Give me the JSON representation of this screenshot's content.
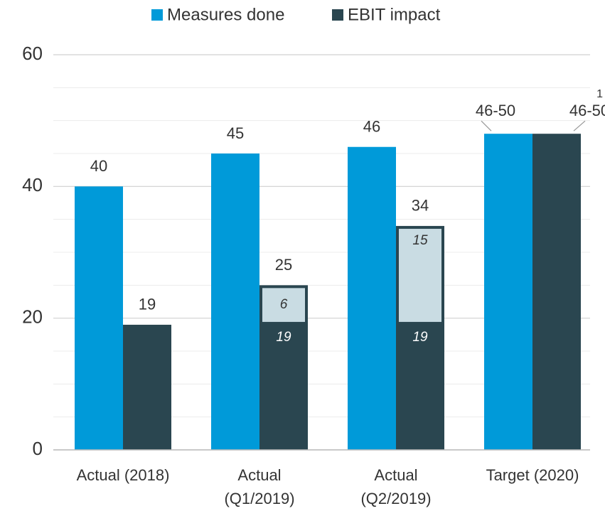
{
  "chart_data": {
    "type": "bar",
    "categories": [
      "Actual (2018)",
      "Actual (Q1/2019)",
      "Actual (Q2/2019)",
      "Target (2020)"
    ],
    "series": [
      {
        "name": "Measures done",
        "color": "#009ad9",
        "values": [
          40,
          45,
          46,
          null
        ]
      },
      {
        "name": "EBIT impact",
        "color": "#2a4650",
        "values": [
          19,
          25,
          34,
          null
        ],
        "base": [
          null,
          19,
          19,
          null
        ],
        "added": [
          null,
          6,
          15,
          null
        ],
        "added_color": "#c9dce3"
      }
    ],
    "target_range": {
      "values": [
        46,
        50
      ],
      "label": "46-50"
    },
    "footnote_marker": "1",
    "ylim": [
      0,
      60
    ],
    "yticks": [
      0,
      20,
      40,
      60
    ],
    "minor_yticks": [
      5,
      10,
      15,
      25,
      30,
      35,
      45,
      50,
      55
    ],
    "grid": true,
    "legend": "top"
  }
}
